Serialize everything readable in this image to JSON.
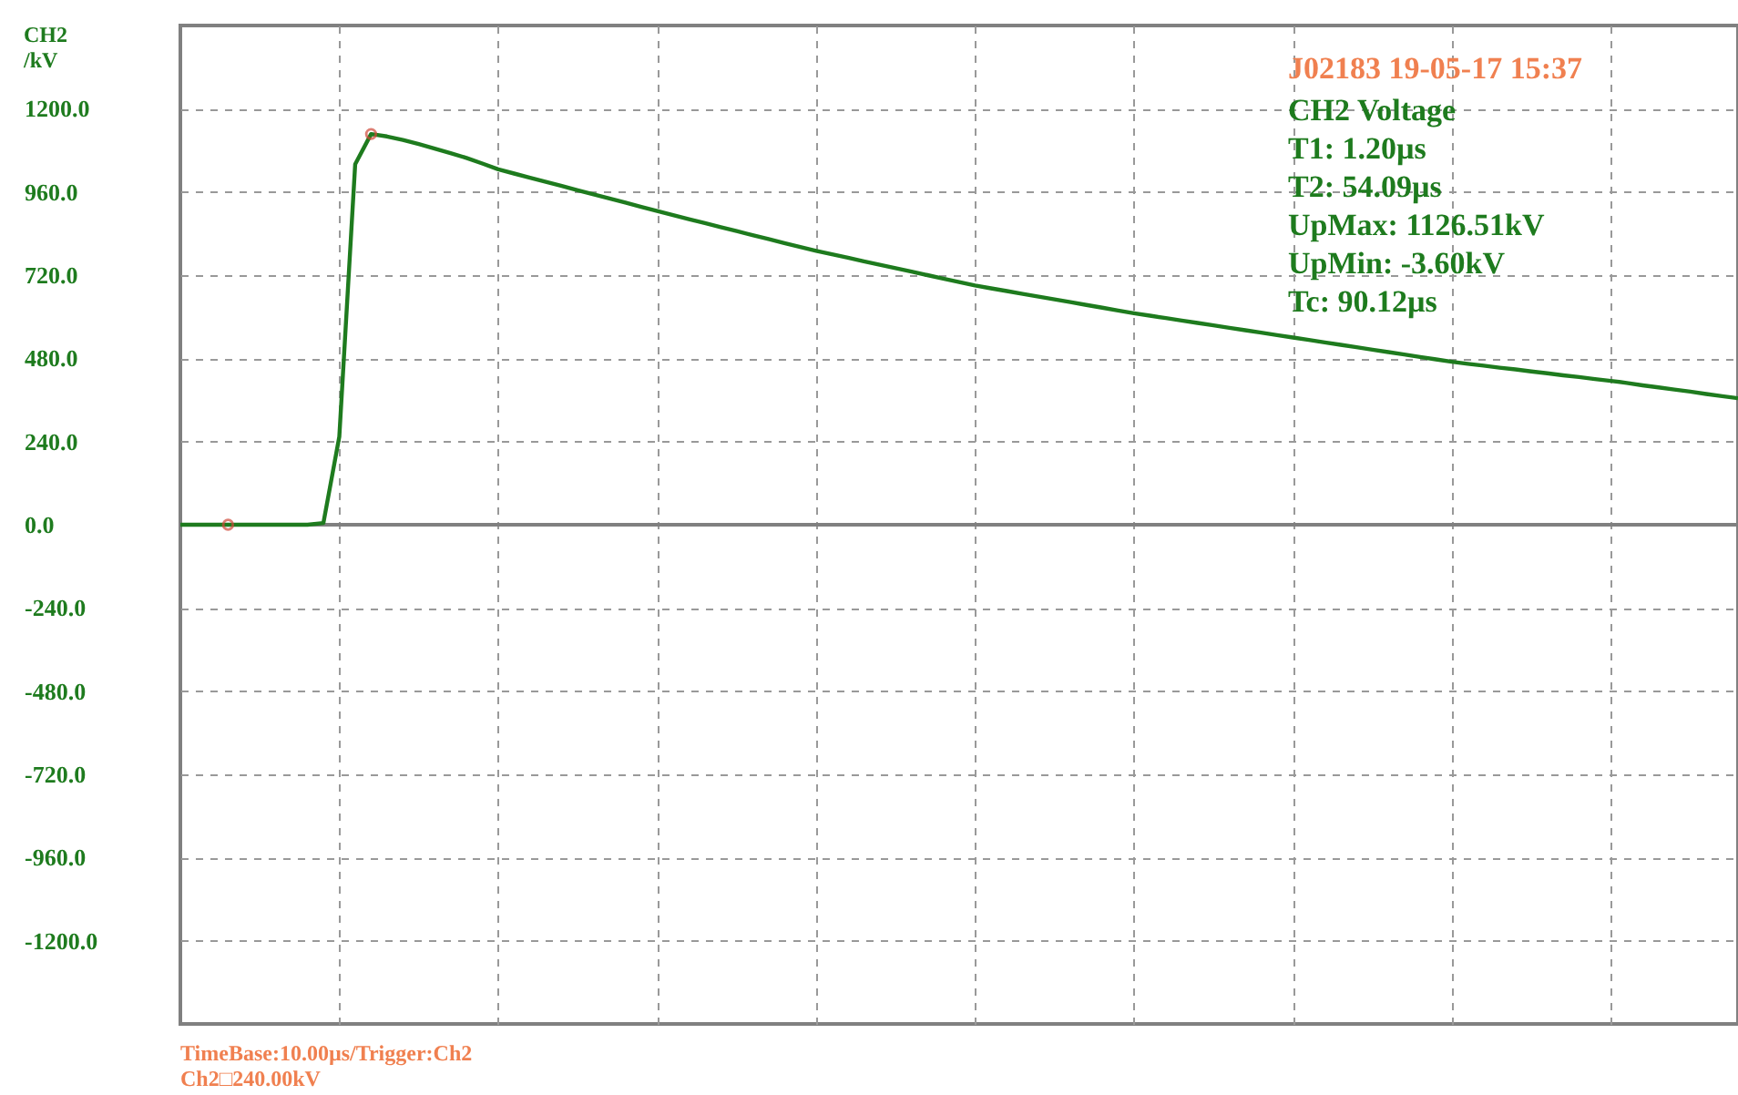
{
  "chart_data": {
    "type": "line",
    "ylabel": "CH2\n/kV",
    "categories": [
      null,
      null,
      null,
      null,
      null,
      null,
      null,
      null,
      null,
      null,
      null,
      null,
      null,
      null,
      null,
      null,
      null,
      null,
      null,
      null,
      null,
      null,
      null,
      null,
      null,
      null,
      null,
      null,
      null,
      null,
      null,
      null,
      null,
      null,
      null,
      null,
      null,
      null,
      null,
      null,
      null,
      null,
      null,
      null,
      null,
      null,
      null,
      null,
      null,
      null,
      null,
      null,
      null,
      null,
      null,
      null,
      null,
      null,
      null,
      null,
      null,
      null,
      null,
      null,
      null,
      null,
      null,
      null,
      null,
      null,
      null,
      null,
      null,
      null,
      null,
      null,
      null,
      null,
      null,
      null,
      null,
      null,
      null,
      null,
      null,
      null,
      null,
      null,
      null,
      null,
      null,
      null,
      null,
      null,
      null,
      null,
      null,
      null,
      null
    ],
    "series": [
      {
        "color": "#1e7b1e",
        "values": [
          0,
          0,
          0,
          0,
          0,
          0,
          0,
          0,
          0,
          5,
          254,
          1040,
          1127,
          1120,
          1110,
          1098,
          1085,
          1072,
          1058,
          1042,
          1025,
          1013,
          1001,
          989,
          977,
          965,
          953,
          941,
          929,
          917,
          905,
          893,
          881,
          870,
          858,
          847,
          835,
          824,
          812,
          801,
          790,
          780,
          770,
          760,
          750,
          740,
          730,
          720,
          710,
          700,
          690,
          682,
          674,
          666,
          658,
          650,
          642,
          634,
          626,
          618,
          610,
          603,
          596,
          589,
          582,
          575,
          568,
          561,
          554,
          547,
          540,
          533,
          526,
          519,
          512,
          505,
          498,
          491,
          484,
          477,
          470,
          464,
          459,
          453,
          448,
          442,
          437,
          431,
          426,
          420,
          415,
          409,
          402,
          396,
          390,
          384,
          377,
          371,
          365
        ]
      },
      {
        "type": "scatter",
        "color": "#d04a3a",
        "marker": "circle",
        "values": [
          null,
          null,
          null,
          0,
          null,
          null,
          null,
          null,
          null,
          null,
          null,
          null,
          1127,
          null,
          null,
          null,
          null,
          null,
          null,
          null,
          null,
          null,
          null,
          null,
          null,
          null,
          null,
          null,
          null,
          null,
          null,
          null,
          null,
          null,
          null,
          null,
          null,
          null,
          null,
          null,
          null,
          null,
          null,
          null,
          null,
          null,
          null,
          null,
          null,
          null,
          null,
          null,
          null,
          null,
          null,
          null,
          null,
          null,
          null,
          null,
          null,
          null,
          null,
          null,
          null,
          null,
          null,
          null,
          null,
          null,
          null,
          null,
          null,
          null,
          null,
          null,
          null,
          null,
          null,
          null,
          null,
          null,
          null,
          null,
          null,
          null,
          null,
          null,
          null,
          null,
          null,
          null,
          null,
          null,
          null,
          null,
          null,
          null,
          null
        ]
      }
    ],
    "ylim": [
      -1440,
      1440
    ],
    "yticks": [
      {
        "value": -1200,
        "label": "-1200.0"
      },
      {
        "value": -960,
        "label": "-960.0"
      },
      {
        "value": -720,
        "label": "-720.0"
      },
      {
        "value": -480,
        "label": "-480.0"
      },
      {
        "value": -240,
        "label": "-240.0"
      },
      {
        "value": 0,
        "label": "0.0"
      },
      {
        "value": 240,
        "label": "240.0"
      },
      {
        "value": 480,
        "label": "480.0"
      },
      {
        "value": 720,
        "label": "720.0"
      },
      {
        "value": 960,
        "label": "960.0"
      },
      {
        "value": 1200,
        "label": "1200.0"
      }
    ],
    "ref_lines": [
      {
        "axis": "y",
        "value": 0,
        "color": "#808080",
        "line_style": "solid"
      }
    ],
    "grid": true,
    "tick_labels": "y",
    "annotations": [
      "J02183  19-05-17 15:37",
      "CH2 Voltage",
      "T1:        1.20µs",
      "T2:        54.09µs",
      "UpMax: 1126.51kV",
      "UpMin:  -3.60kV",
      "Tc:         90.12µs",
      "TimeBase:10.00µs/Trigger:Ch2",
      "Ch2□240.00kV"
    ]
  }
}
